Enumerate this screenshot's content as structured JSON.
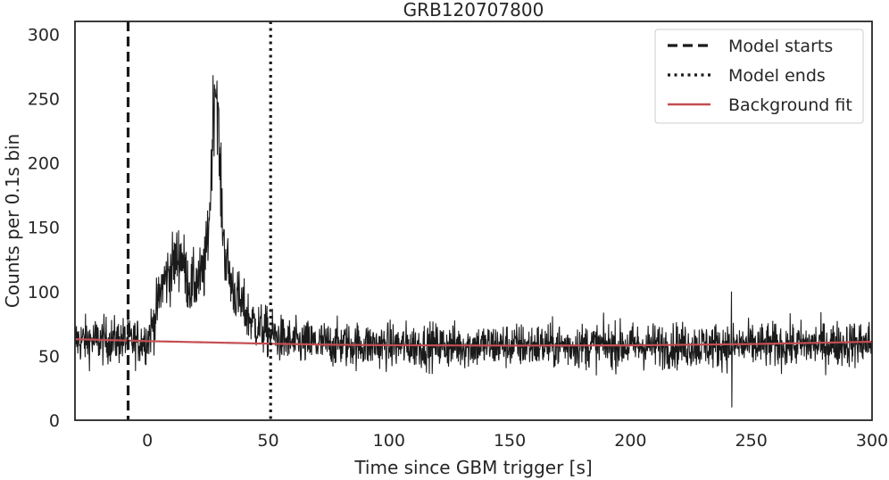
{
  "chart_data": {
    "type": "line",
    "title": "GRB120707800",
    "xlabel": "Time since GBM trigger [s]",
    "ylabel": "Counts per 0.1s bin",
    "xlim": [
      -30,
      300
    ],
    "ylim": [
      0,
      310
    ],
    "xticks": [
      0,
      50,
      100,
      150,
      200,
      250,
      300
    ],
    "xtick_labels": [
      "0",
      "50",
      "100",
      "150",
      "200",
      "250",
      "300"
    ],
    "yticks": [
      0,
      50,
      100,
      150,
      200,
      250,
      300
    ],
    "ytick_labels": [
      "0",
      "50",
      "100",
      "150",
      "200",
      "250",
      "300"
    ],
    "grid": false,
    "legend_position": "top-right",
    "vlines": [
      {
        "name": "Model starts",
        "x": -8,
        "style": "dashed",
        "color": "#1a1a1a"
      },
      {
        "name": "Model ends",
        "x": 51,
        "style": "dotted",
        "color": "#1a1a1a"
      }
    ],
    "series": [
      {
        "name": "",
        "color": "#1a1a1a",
        "sampling": "0.1 s bins, shown as a noisy light curve",
        "x": [
          -30,
          -10,
          -5,
          0,
          3,
          6,
          9,
          12,
          14,
          16,
          18,
          20,
          22,
          24,
          26,
          27,
          28,
          29,
          30,
          32,
          35,
          38,
          42,
          46,
          50,
          55,
          60,
          80,
          100,
          150,
          200,
          240,
          242,
          244,
          260,
          280,
          300
        ],
        "values": [
          62,
          62,
          61,
          63,
          78,
          105,
          115,
          125,
          130,
          112,
          103,
          108,
          110,
          120,
          170,
          230,
          265,
          250,
          190,
          130,
          105,
          92,
          80,
          72,
          68,
          63,
          60,
          59,
          58,
          58,
          58,
          58,
          58,
          58,
          58,
          59,
          60
        ],
        "spikes": [
          {
            "x": 241.8,
            "high": 100,
            "low": 10
          }
        ]
      },
      {
        "name": "Background fit",
        "color": "#c44e52",
        "x": [
          -30,
          0,
          25,
          50,
          75,
          100,
          150,
          200,
          250,
          300
        ],
        "values": [
          63,
          61.5,
          60.5,
          59.5,
          58.7,
          58.3,
          58.0,
          58.2,
          59.2,
          61.0
        ]
      }
    ],
    "legend": [
      {
        "label": "Model starts",
        "style": "dashed"
      },
      {
        "label": "Model ends",
        "style": "dotted"
      },
      {
        "label": "Background fit",
        "style": "solid"
      }
    ],
    "colors": {
      "data": "#1a1a1a",
      "background_fit": "#c44e52",
      "axes": "#262626"
    }
  }
}
